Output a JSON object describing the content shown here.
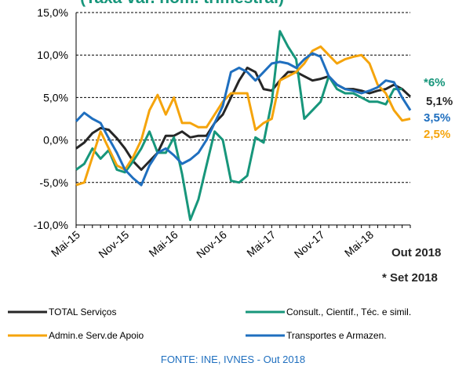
{
  "chart_data": {
    "type": "line",
    "title": "(Taxa var. nom. trimestral)",
    "categories": [
      "Mai-15",
      null,
      null,
      null,
      null,
      null,
      "Nov-15",
      null,
      null,
      null,
      null,
      null,
      "Mai-16",
      null,
      null,
      null,
      null,
      null,
      "Nov-16",
      null,
      null,
      null,
      null,
      null,
      "Mai-17",
      null,
      null,
      null,
      null,
      null,
      "Nov-17",
      null,
      null,
      null,
      null,
      null,
      "Mai-18",
      null,
      null,
      null,
      null,
      null
    ],
    "series": [
      {
        "name": "TOTAL Serviços",
        "color": "#262626",
        "values": [
          -1,
          -0.3,
          0.8,
          1.4,
          1.2,
          0.2,
          -1,
          -2.5,
          -3.5,
          -2.5,
          -1.5,
          0.5,
          0.5,
          1,
          0.3,
          0.5,
          0.5,
          2,
          3,
          5,
          7,
          8.5,
          8,
          6,
          5.8,
          7,
          8,
          8,
          7.5,
          7,
          7.2,
          7.5,
          6.5,
          6,
          6,
          5.8,
          5.5,
          5.8,
          6,
          6.5,
          6,
          5.1
        ]
      },
      {
        "name": "Consult., Científ., Téc. e simil.",
        "color": "#17967b",
        "values": [
          -3.5,
          -2.8,
          -1,
          -2.2,
          -1.2,
          -3.5,
          -3.8,
          -2.5,
          -1,
          1,
          -1.5,
          -1.5,
          0.3,
          -4,
          -9.4,
          -7,
          -3,
          1,
          0,
          -4.8,
          -5,
          -4.2,
          0.3,
          -0.3,
          4.5,
          12.8,
          11,
          9.5,
          2.5,
          3.5,
          4.5,
          7.5,
          6,
          5.5,
          5.5,
          5,
          4.5,
          4.5,
          4.2,
          6,
          6,
          null
        ]
      },
      {
        "name": "Admin.e Serv.de Apoio",
        "color": "#f5a40c",
        "values": [
          -5.3,
          -5,
          -2,
          1,
          -1,
          -3,
          -3.5,
          -2,
          0,
          3.5,
          5.3,
          3,
          5,
          2,
          2,
          1.5,
          1.5,
          3,
          4.5,
          5.5,
          5.5,
          5.5,
          1.2,
          2,
          2.5,
          7,
          7.5,
          8,
          9,
          10.5,
          11,
          10,
          9,
          9.5,
          9.8,
          10,
          9,
          6.5,
          5.5,
          3.5,
          2.3,
          2.5
        ]
      },
      {
        "name": "Transportes e Armazen.",
        "color": "#1f6fbf",
        "values": [
          2.2,
          3.2,
          2.5,
          2,
          0.2,
          -1.5,
          -3.5,
          -4.5,
          -5.3,
          -3,
          -1.5,
          -1,
          -1.8,
          -2.8,
          -2.3,
          -1.5,
          0,
          2,
          4,
          8,
          8.5,
          8,
          7,
          8,
          9,
          9.2,
          9,
          8.5,
          9.5,
          10.2,
          9.8,
          7.5,
          6.5,
          6,
          5.8,
          5.5,
          5.8,
          6.2,
          7,
          6.8,
          5,
          3.5
        ]
      }
    ],
    "ylim": [
      -10,
      15
    ],
    "yticks": [
      {
        "value": -10,
        "label": "-10,0%"
      },
      {
        "value": -5,
        "label": "-5,0%"
      },
      {
        "value": 0,
        "label": "0,0%"
      },
      {
        "value": 5,
        "label": "5,0%"
      },
      {
        "value": 10,
        "label": "10,0%"
      },
      {
        "value": 15,
        "label": "15,0%"
      }
    ],
    "grid": true,
    "annotations": [
      {
        "text": "*6%",
        "color": "#17967b"
      },
      {
        "text": "5,1%",
        "color": "#262626"
      },
      {
        "text": "3,5%",
        "color": "#1f6fbf"
      },
      {
        "text": "2,5%",
        "color": "#f5a40c"
      },
      {
        "text": "Out 2018",
        "color": "#262626"
      },
      {
        "text": "* Set 2018",
        "color": "#262626"
      }
    ],
    "source": "FONTE: INE, IVNES - Out 2018"
  }
}
